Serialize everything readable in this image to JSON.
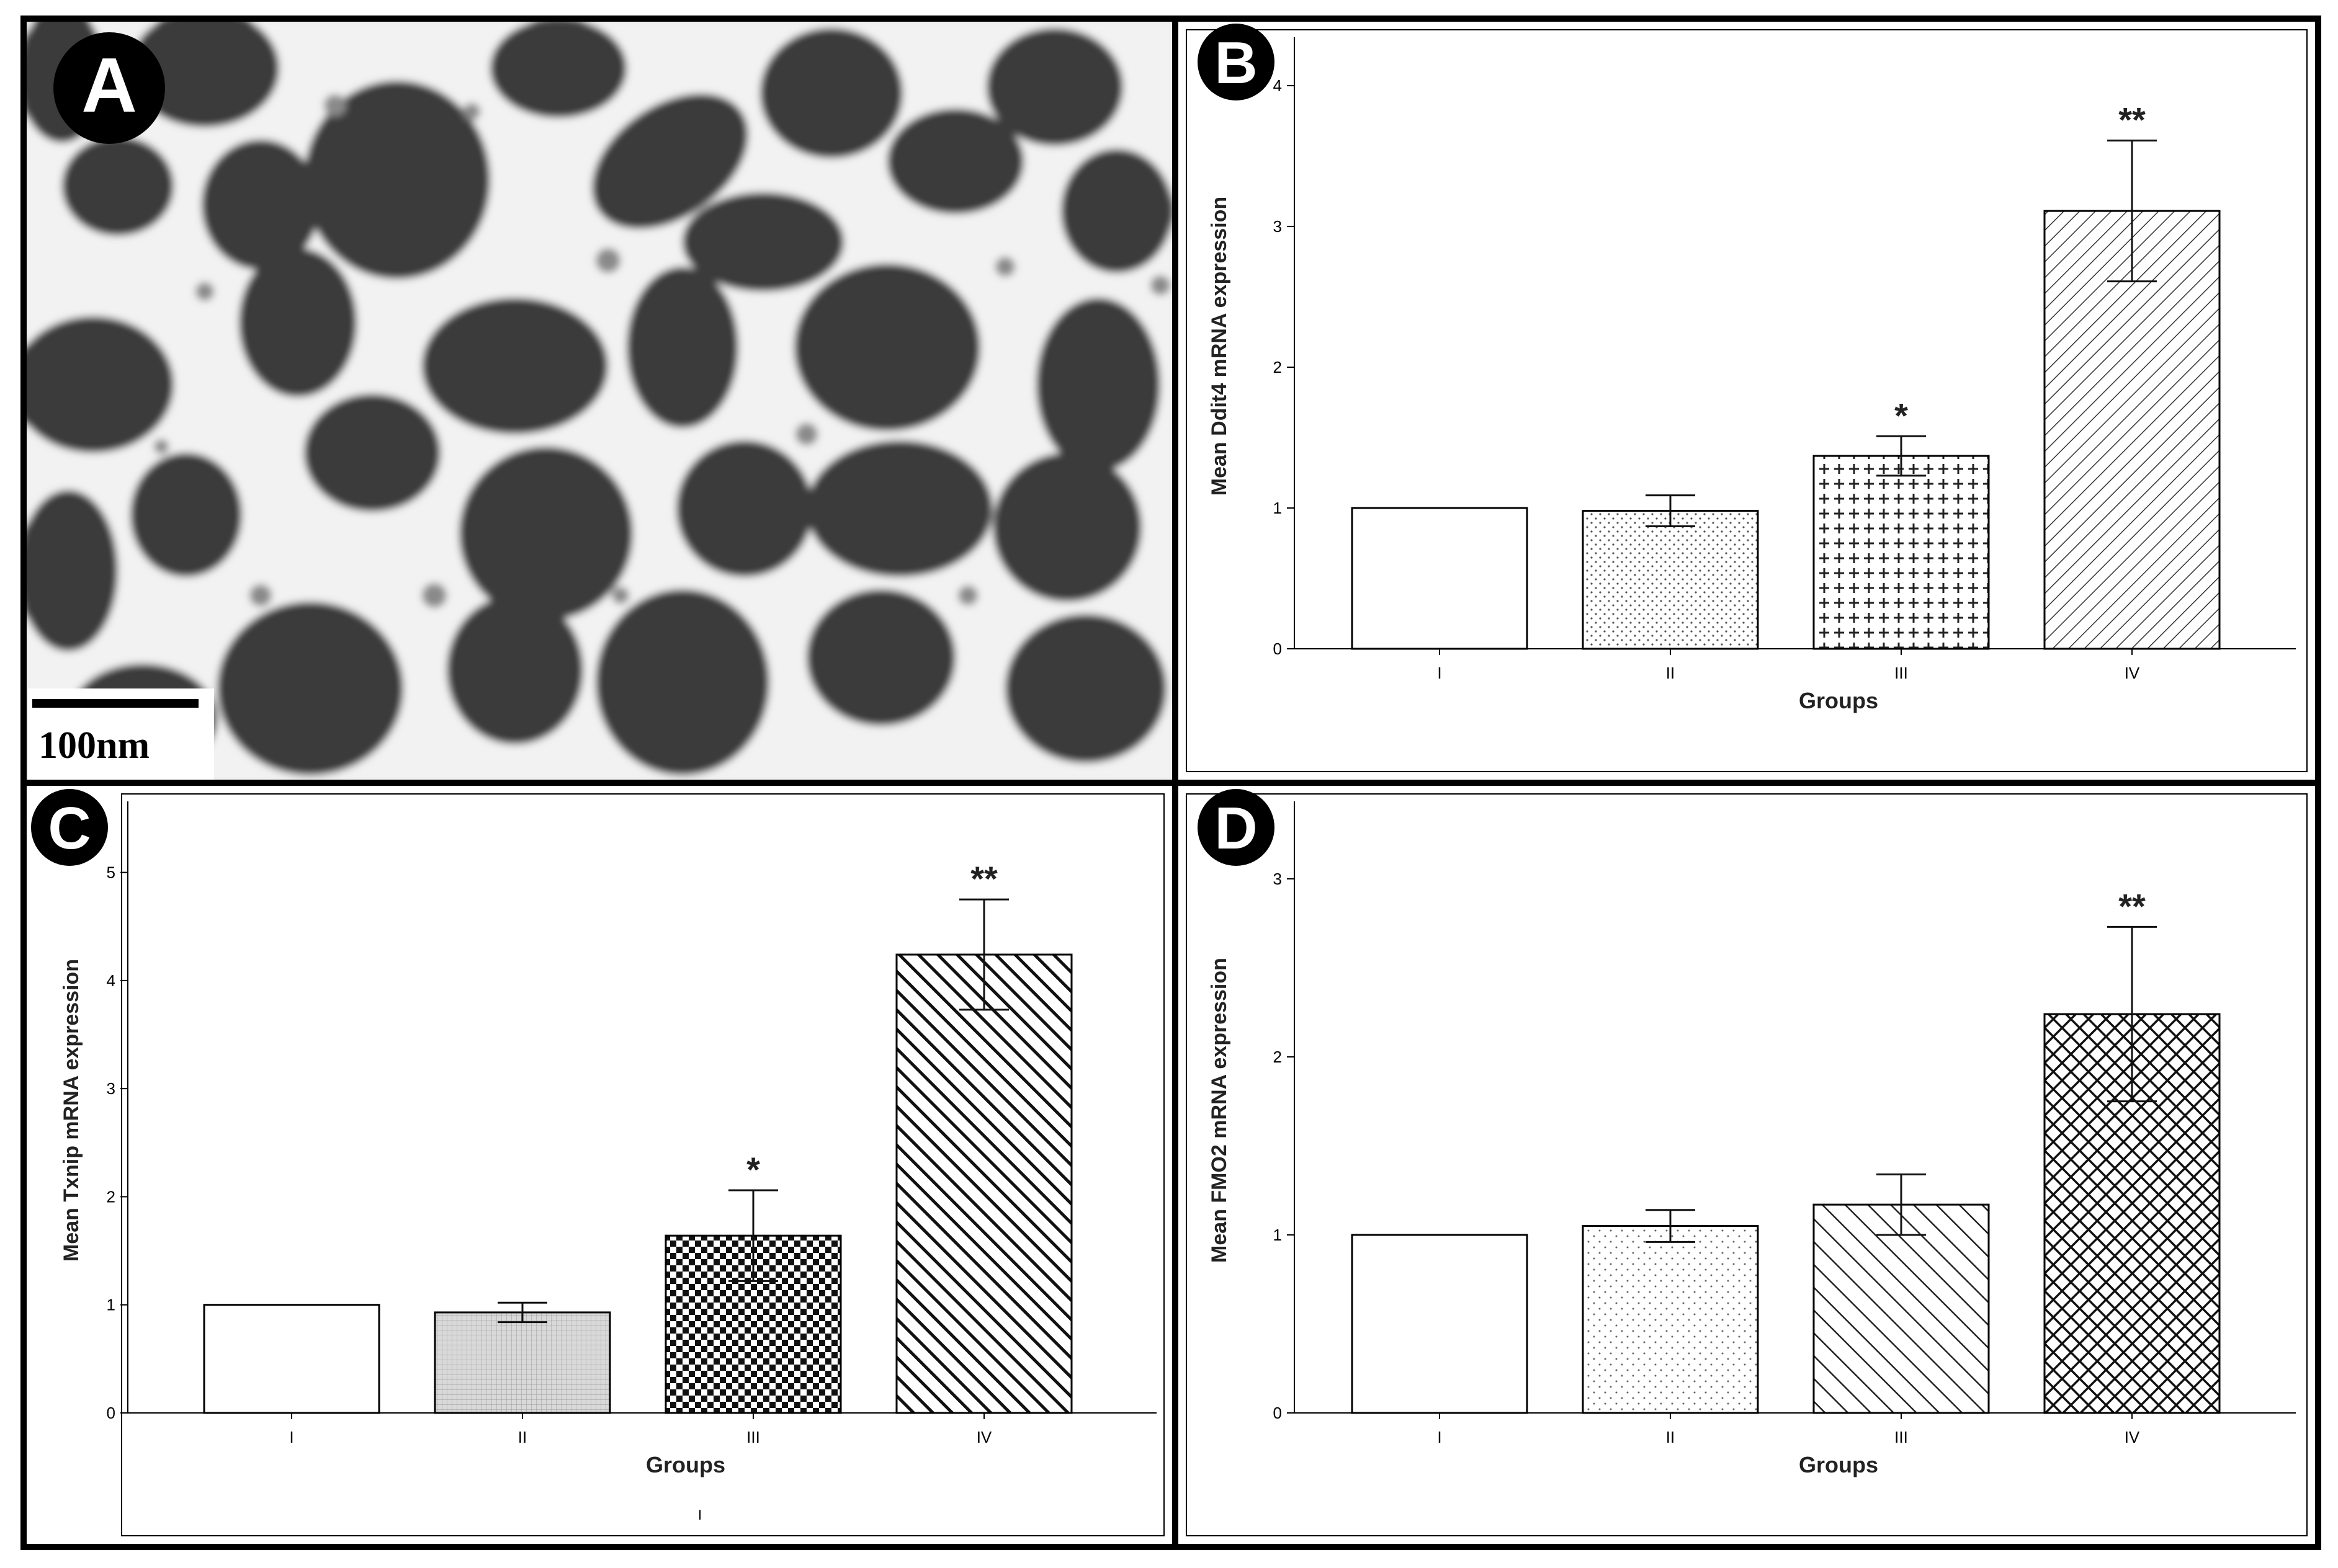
{
  "panels": {
    "A": {
      "letter": "A",
      "scale_bar_label": "100nm"
    },
    "B": {
      "letter": "B"
    },
    "C": {
      "letter": "C",
      "footnote": "I"
    },
    "D": {
      "letter": "D"
    }
  },
  "chart_data": [
    {
      "panel": "B",
      "type": "bar",
      "categories": [
        "I",
        "II",
        "III",
        "IV"
      ],
      "values": [
        1.0,
        0.98,
        1.37,
        3.11
      ],
      "errors": [
        0.0,
        0.11,
        0.14,
        0.5
      ],
      "significance": [
        "",
        "",
        "*",
        "**"
      ],
      "patterns": [
        "white",
        "dots",
        "crosses",
        "diagonal"
      ],
      "xlabel": "Groups",
      "ylabel": "Mean Ddit4 mRNA expression",
      "ylim": [
        0,
        4.3
      ],
      "yticks": [
        0,
        1,
        2,
        3,
        4
      ]
    },
    {
      "panel": "C",
      "type": "bar",
      "categories": [
        "I",
        "II",
        "III",
        "IV"
      ],
      "values": [
        1.0,
        0.93,
        1.64,
        4.24
      ],
      "errors": [
        0.0,
        0.09,
        0.42,
        0.51
      ],
      "significance": [
        "",
        "",
        "*",
        "**"
      ],
      "patterns": [
        "white",
        "fine-grid",
        "checker",
        "bold-diagonal"
      ],
      "xlabel": "Groups",
      "ylabel": "Mean Txnip mRNA expression",
      "ylim": [
        0,
        5.6
      ],
      "yticks": [
        0,
        1,
        2,
        3,
        4,
        5
      ]
    },
    {
      "panel": "D",
      "type": "bar",
      "categories": [
        "I",
        "II",
        "III",
        "IV"
      ],
      "values": [
        1.0,
        1.05,
        1.17,
        2.24
      ],
      "errors": [
        0.0,
        0.09,
        0.17,
        0.49
      ],
      "significance": [
        "",
        "",
        "",
        "**"
      ],
      "patterns": [
        "white",
        "sparse-dots",
        "diagonal-wide",
        "crosshatch"
      ],
      "xlabel": "Groups",
      "ylabel": "Mean FMO2 mRNA expression",
      "ylim": [
        0,
        3.4
      ],
      "yticks": [
        0,
        1,
        2,
        3
      ]
    }
  ]
}
